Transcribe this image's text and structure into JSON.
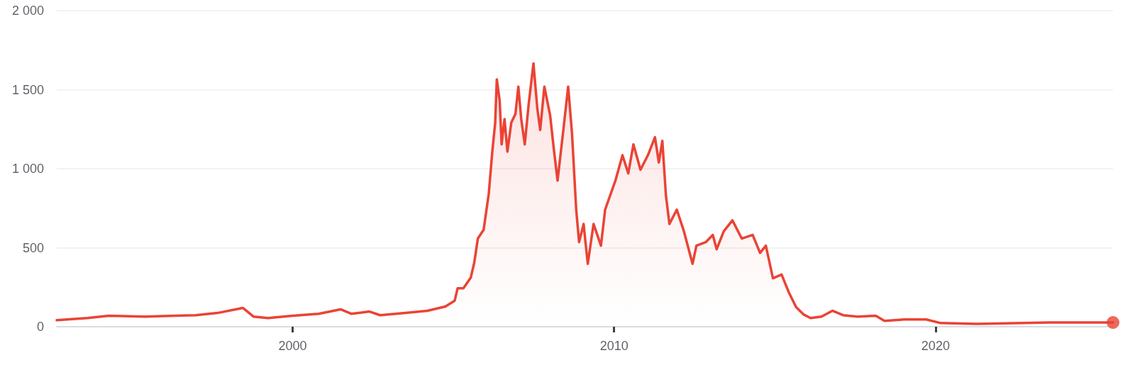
{
  "chart_data": {
    "type": "area",
    "xlim": [
      1992.66,
      2025.52
    ],
    "xticks": [
      2000,
      2010,
      2020
    ],
    "ylim": [
      0,
      2000
    ],
    "yticks": [
      0,
      500,
      {
        "value": 1000,
        "label": "1 000"
      },
      {
        "value": 1500,
        "label": "1 500"
      },
      {
        "value": 2000,
        "label": "2 000"
      }
    ],
    "grid": "y",
    "marker": "none",
    "line_style": "solid",
    "series": [
      {
        "color": "#ea4335",
        "x": [
          1992.66,
          1993.61,
          1994.28,
          1995.41,
          1996.31,
          1996.98,
          1997.66,
          1998.45,
          1998.78,
          1999.23,
          2000,
          2000.81,
          2001.49,
          2001.82,
          2002.39,
          2002.72,
          2003.51,
          2004.19,
          2004.75,
          2005.04,
          2005.13,
          2005.31,
          2005.54,
          2005.65,
          2005.76,
          2005.94,
          2006.1,
          2006.21,
          2006.3,
          2006.35,
          2006.44,
          2006.5,
          2006.59,
          2006.68,
          2006.8,
          2006.93,
          2007.02,
          2007.11,
          2007.22,
          2007.34,
          2007.49,
          2007.61,
          2007.7,
          2007.83,
          2008.01,
          2008.12,
          2008.24,
          2008.42,
          2008.57,
          2008.69,
          2008.82,
          2008.91,
          2009.05,
          2009.18,
          2009.36,
          2009.59,
          2009.72,
          2010.04,
          2010.26,
          2010.44,
          2010.6,
          2010.82,
          2011.05,
          2011.27,
          2011.39,
          2011.5,
          2011.61,
          2011.72,
          2011.95,
          2012.17,
          2012.44,
          2012.56,
          2012.85,
          2013.07,
          2013.19,
          2013.41,
          2013.68,
          2013.97,
          2014.31,
          2014.54,
          2014.72,
          2014.94,
          2015.21,
          2015.44,
          2015.66,
          2015.89,
          2016.11,
          2016.45,
          2016.79,
          2017.12,
          2017.57,
          2018.14,
          2018.41,
          2019.04,
          2019.71,
          2020.16,
          2021.29,
          2023.54,
          2025.52
        ],
        "values": [
          41,
          55,
          69,
          64,
          69,
          73,
          87,
          119,
          64,
          55,
          69,
          82,
          110,
          82,
          96,
          73,
          87,
          101,
          128,
          165,
          243,
          243,
          311,
          407,
          558,
          613,
          842,
          1108,
          1291,
          1565,
          1428,
          1154,
          1314,
          1108,
          1291,
          1346,
          1519,
          1314,
          1154,
          1405,
          1666,
          1382,
          1245,
          1519,
          1336,
          1131,
          925,
          1245,
          1519,
          1222,
          741,
          535,
          650,
          398,
          650,
          513,
          741,
          925,
          1085,
          970,
          1154,
          993,
          1085,
          1199,
          1039,
          1176,
          833,
          650,
          741,
          604,
          398,
          513,
          535,
          581,
          490,
          604,
          673,
          558,
          581,
          467,
          513,
          307,
          330,
          215,
          124,
          78,
          55,
          64,
          101,
          73,
          64,
          69,
          37,
          46,
          46,
          23,
          18,
          27,
          27
        ]
      },
      {
        "type": "scatter",
        "marker": "circle",
        "color": "#ea4335",
        "x": [
          2025.52
        ],
        "values": [
          27
        ]
      }
    ]
  }
}
